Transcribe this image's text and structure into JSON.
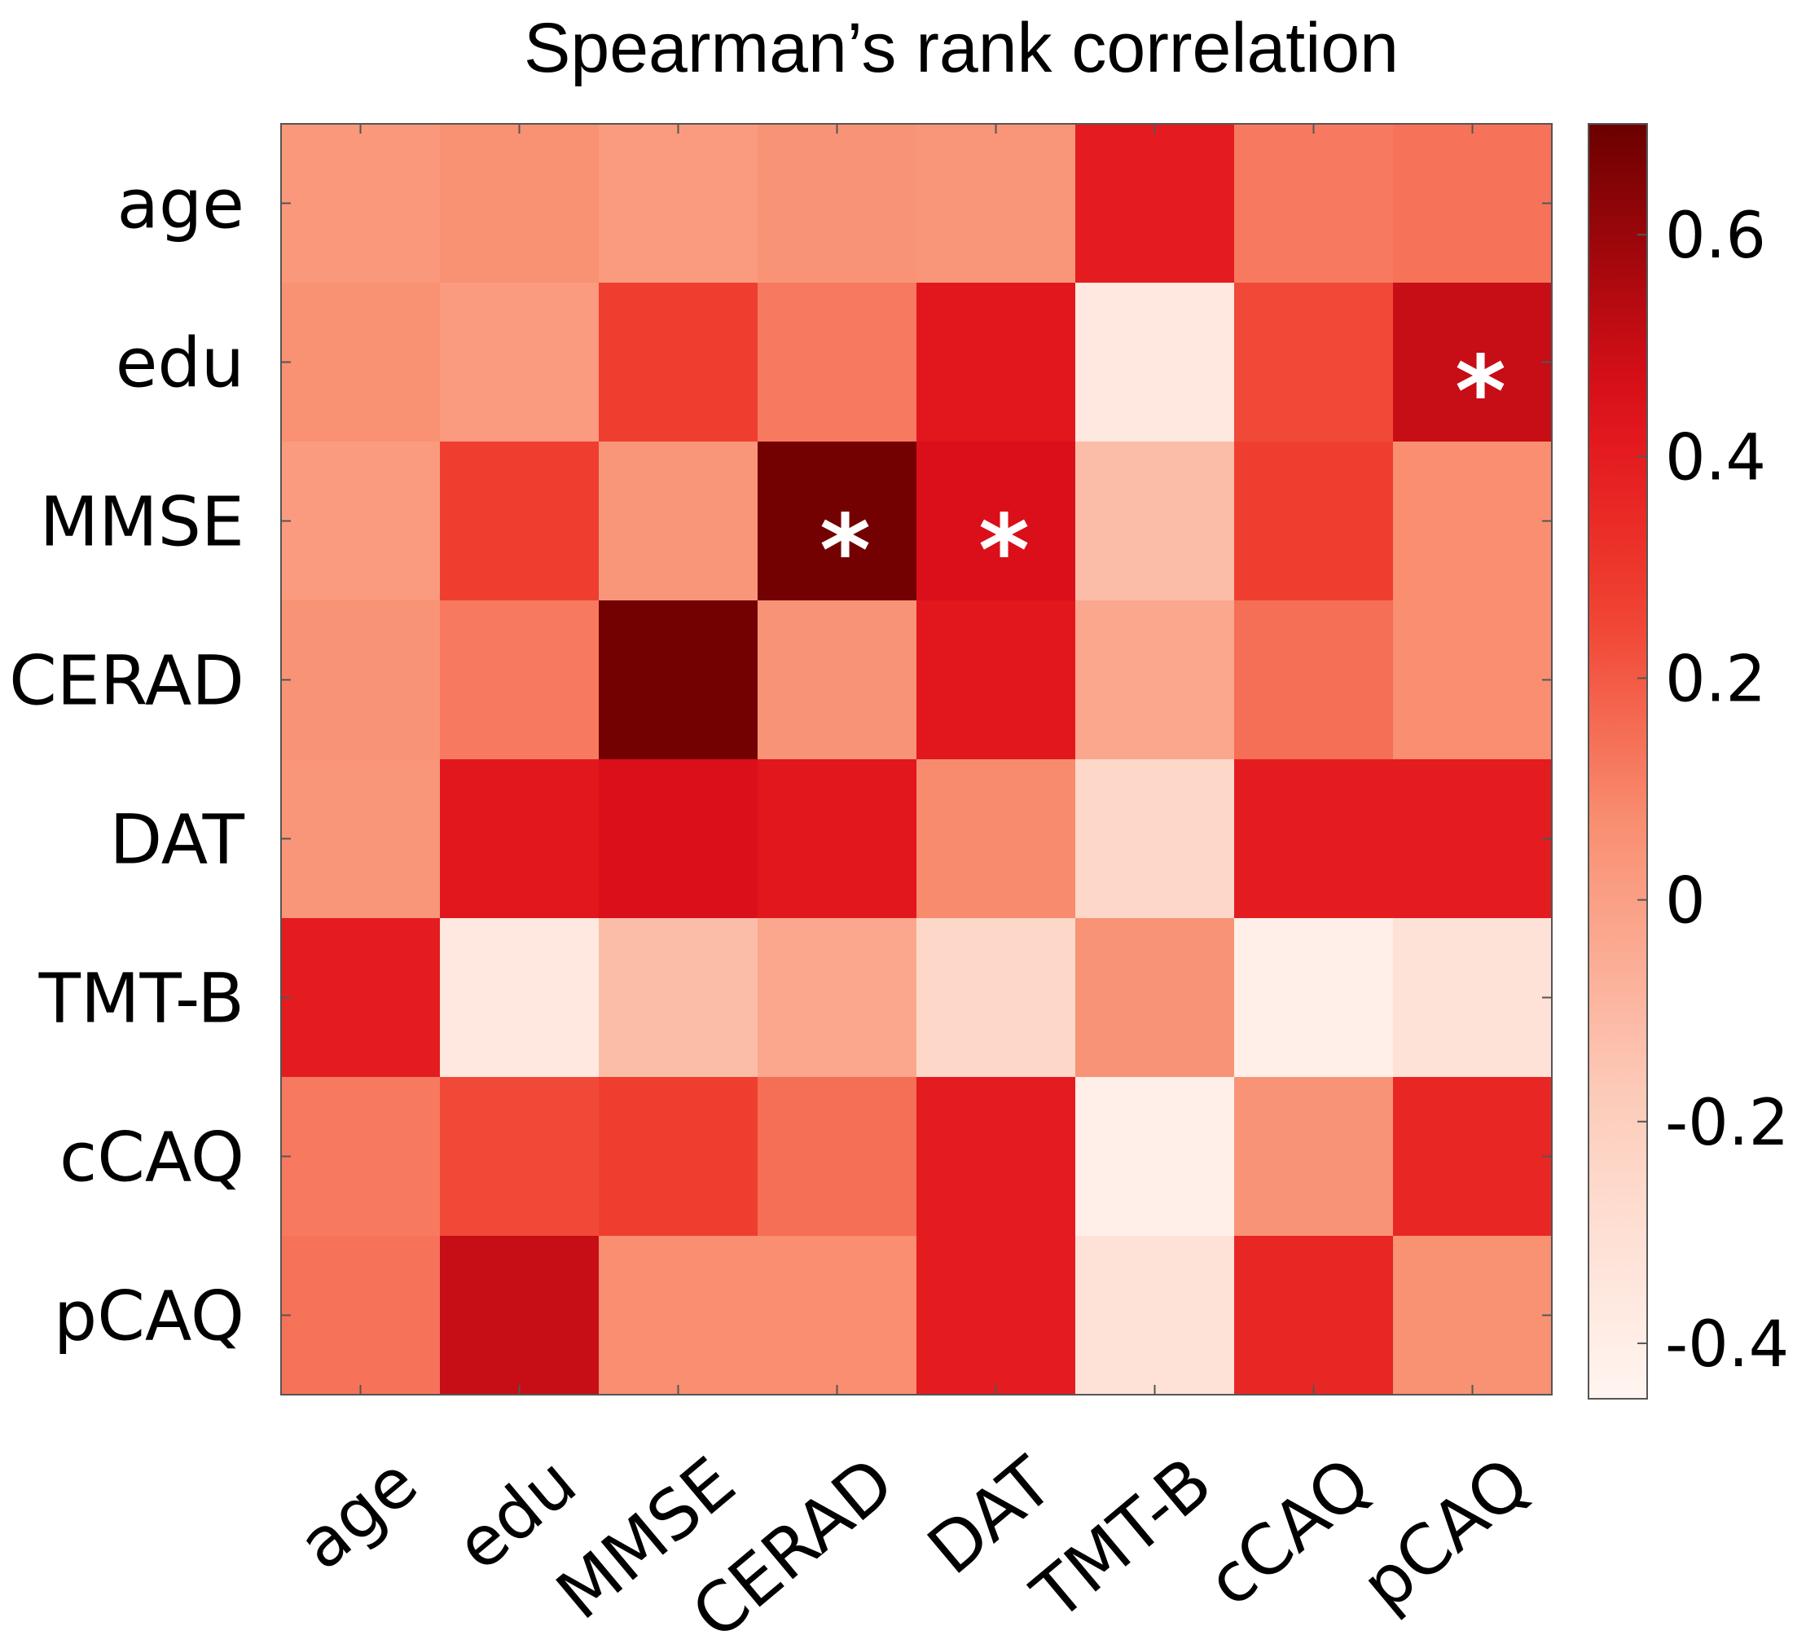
{
  "chart_data": {
    "type": "heatmap",
    "title": "Spearman’s rank correlation",
    "xlabel": "",
    "ylabel": "",
    "row_labels": [
      "age",
      "edu",
      "MMSE",
      "CERAD",
      "DAT",
      "TMT-B",
      "cCAQ",
      "pCAQ"
    ],
    "col_labels": [
      "age",
      "edu",
      "MMSE",
      "CERAD",
      "DAT",
      "TMT-B",
      "cCAQ",
      "pCAQ"
    ],
    "values": [
      [
        0.03,
        0.06,
        0.02,
        0.05,
        0.04,
        0.4,
        0.12,
        0.14
      ],
      [
        0.06,
        0.02,
        0.27,
        0.12,
        0.42,
        -0.36,
        0.24,
        0.5
      ],
      [
        0.02,
        0.27,
        0.04,
        0.68,
        0.46,
        -0.12,
        0.27,
        0.07
      ],
      [
        0.05,
        0.12,
        0.68,
        0.05,
        0.42,
        -0.03,
        0.15,
        0.07
      ],
      [
        0.04,
        0.42,
        0.46,
        0.42,
        0.08,
        -0.25,
        0.4,
        0.4
      ],
      [
        0.4,
        -0.36,
        -0.12,
        -0.03,
        -0.25,
        0.05,
        -0.41,
        -0.32
      ],
      [
        0.12,
        0.24,
        0.27,
        0.15,
        0.4,
        -0.41,
        0.05,
        0.36
      ],
      [
        0.14,
        0.5,
        0.07,
        0.07,
        0.4,
        -0.32,
        0.36,
        0.06
      ]
    ],
    "significant": [
      [
        1,
        7
      ],
      [
        2,
        3
      ],
      [
        2,
        4
      ]
    ],
    "significance_marker": "*",
    "colorbar": {
      "range": [
        -0.45,
        0.7
      ],
      "ticks": [
        0.6,
        0.4,
        0.2,
        0,
        -0.2,
        -0.4
      ],
      "tick_labels": [
        "0.6",
        "0.4",
        "0.2",
        "0",
        "-0.2",
        "-0.4"
      ],
      "colormap": "reds"
    },
    "colors": {
      "low": "#fff5f0",
      "mid_low": "#fdd0bf",
      "mid": "#f98f71",
      "mid_high": "#f04030",
      "high": "#e0101a",
      "top": "#6b0000",
      "marker": "#ffffff",
      "axis": "#555555"
    }
  }
}
